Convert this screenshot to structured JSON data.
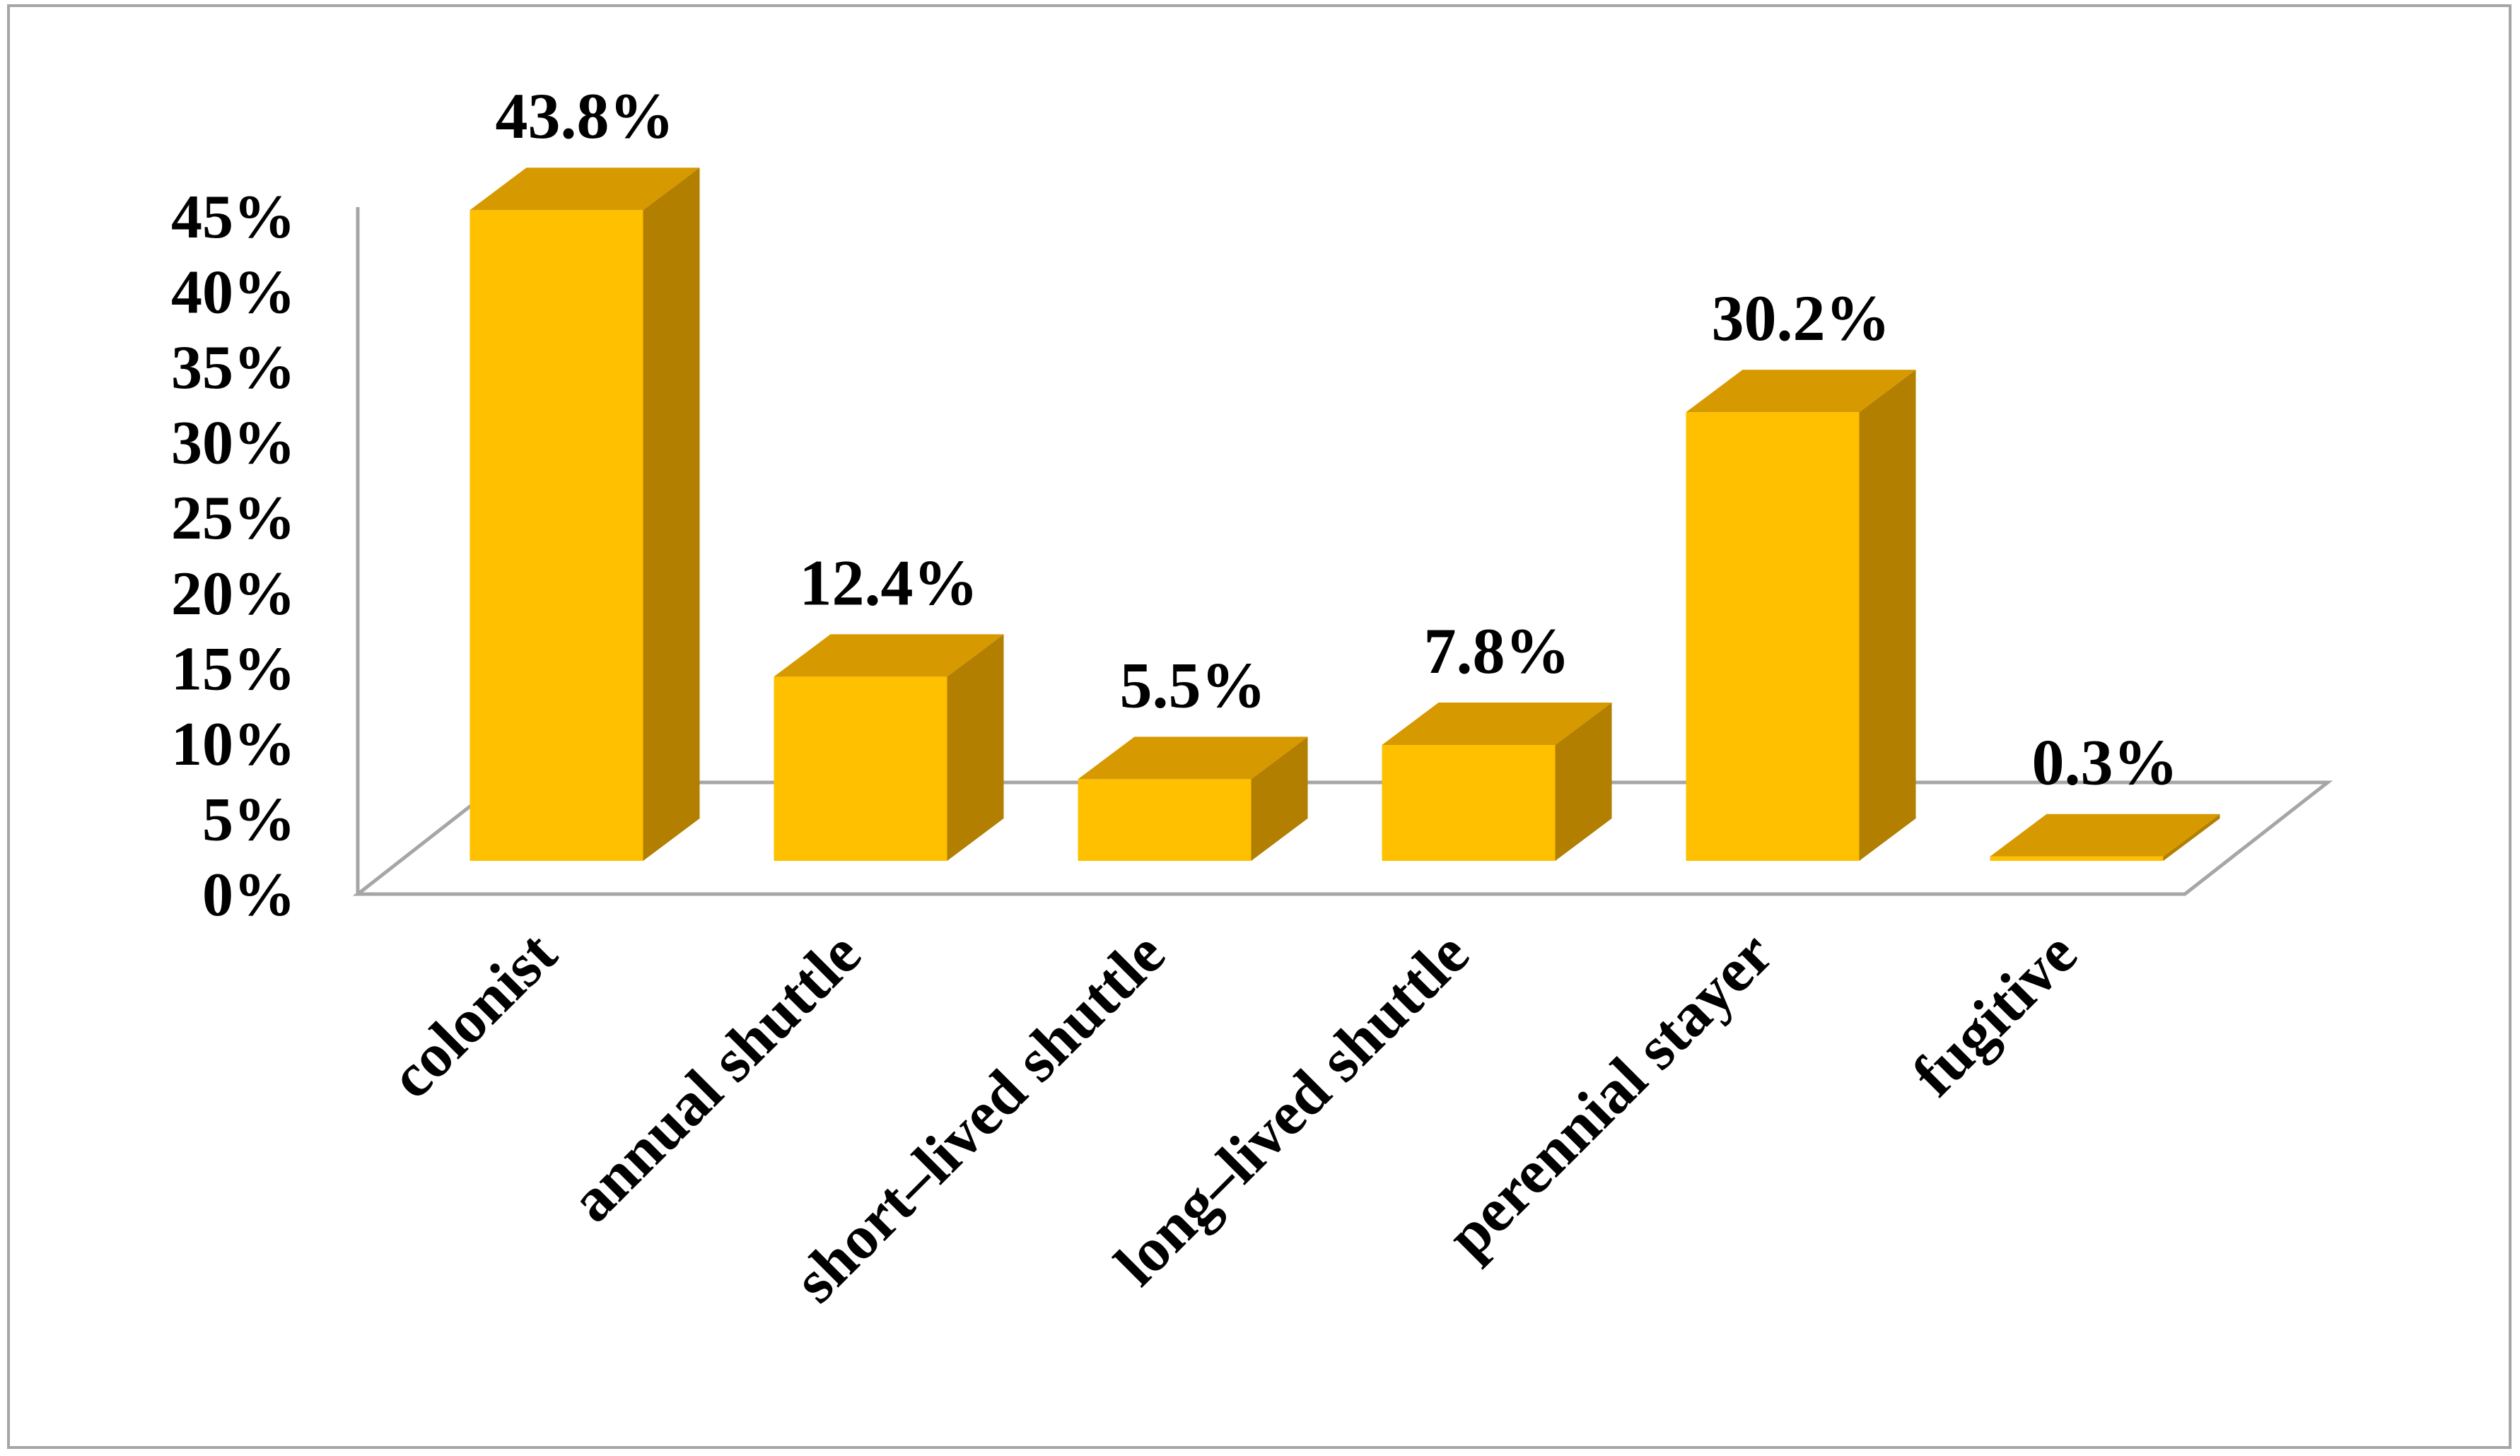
{
  "chart_data": {
    "type": "bar",
    "style": "3d",
    "title": "",
    "xlabel": "",
    "ylabel": "",
    "categories": [
      "colonist",
      "annual shuttle",
      "short–lived shuttle",
      "long–lived shuttle",
      "perennial stayer",
      "fugitive"
    ],
    "values": [
      43.8,
      12.4,
      5.5,
      7.8,
      30.2,
      0.3
    ],
    "data_labels": [
      "43.8%",
      "12.4%",
      "5.5%",
      "7.8%",
      "30.2%",
      "0.3%"
    ],
    "ylim": [
      0,
      45
    ],
    "yticks": [
      0,
      5,
      10,
      15,
      20,
      25,
      30,
      35,
      40,
      45
    ],
    "ytick_labels": [
      "0%",
      "5%",
      "10%",
      "15%",
      "20%",
      "25%",
      "30%",
      "35%",
      "40%",
      "45%"
    ],
    "grid": false,
    "legend": "none",
    "colors": {
      "bar_front": "#FFC000",
      "bar_top": "#D79900",
      "bar_side": "#B27F00",
      "axis": "#A6A6A6",
      "frame": "#A6A6A6"
    }
  }
}
